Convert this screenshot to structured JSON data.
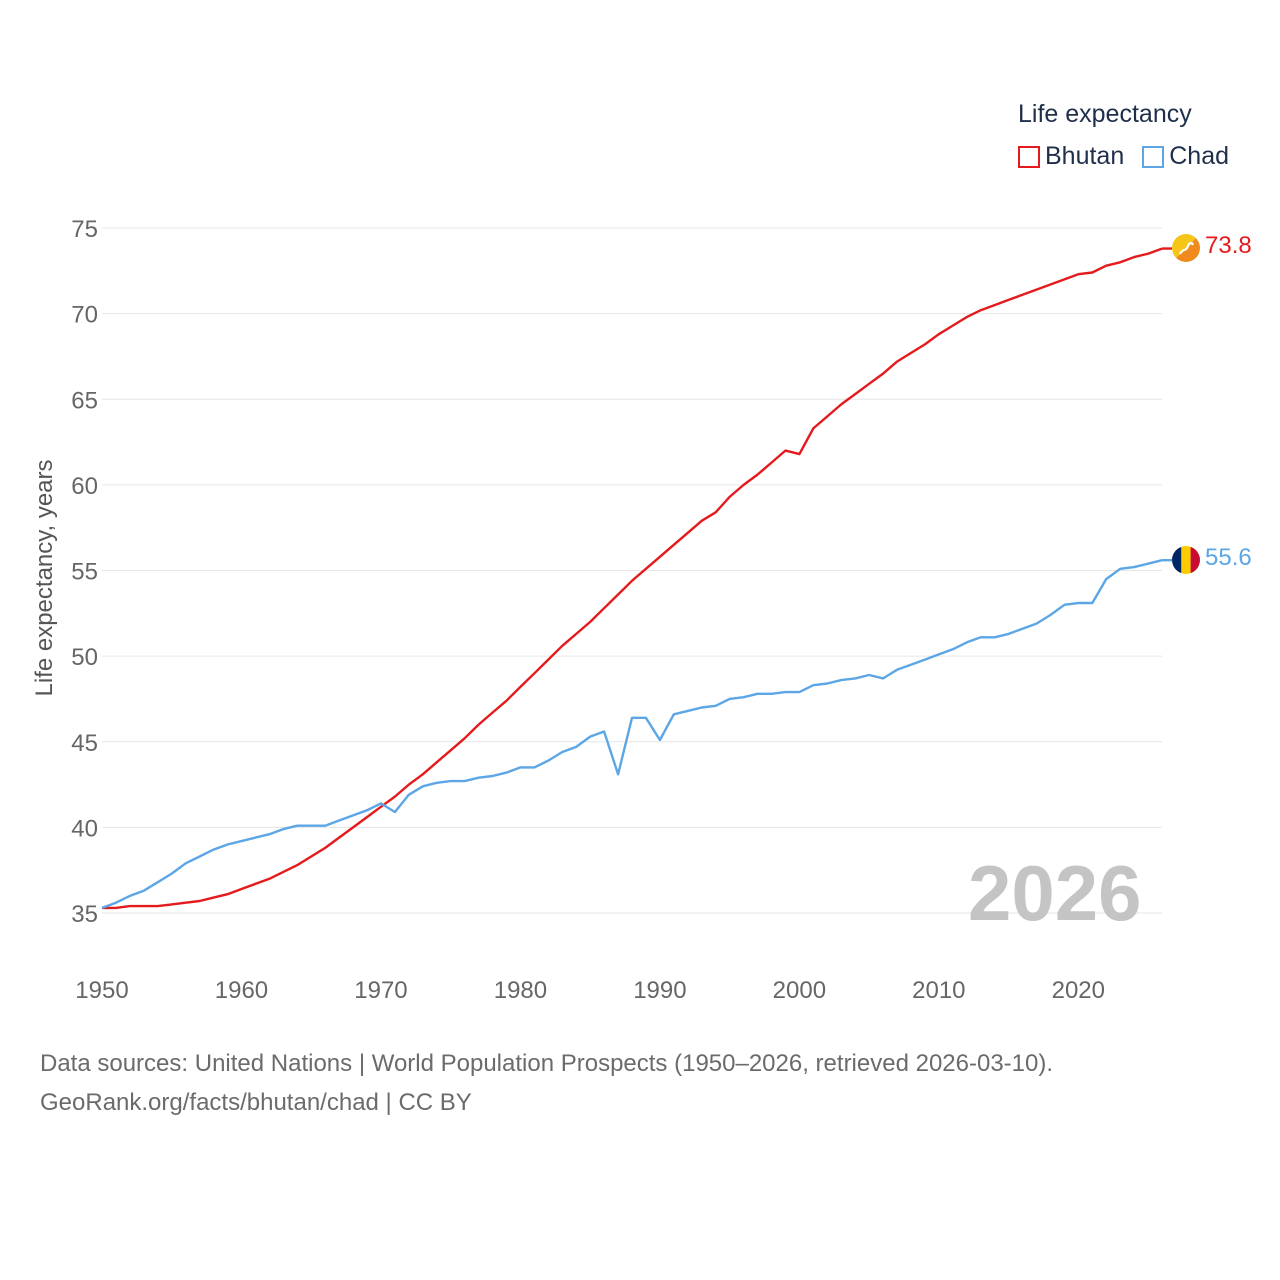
{
  "chart_data": {
    "type": "line",
    "title": "",
    "xlabel": "",
    "ylabel": "Life expectancy, years",
    "xlim": [
      1950,
      2026
    ],
    "ylim": [
      33,
      77
    ],
    "yticks": [
      35,
      40,
      45,
      50,
      55,
      60,
      65,
      70,
      75
    ],
    "xticks": [
      1950,
      1960,
      1970,
      1980,
      1990,
      2000,
      2010,
      2020
    ],
    "grid": true,
    "legend": {
      "title": "Life expectancy",
      "placement": "top-right"
    },
    "year_label": "2026",
    "series": [
      {
        "name": "Bhutan",
        "color": "#e41a1c",
        "end_label": "73.8",
        "points": [
          [
            1950,
            35.3
          ],
          [
            1951,
            35.3
          ],
          [
            1952,
            35.4
          ],
          [
            1953,
            35.4
          ],
          [
            1954,
            35.4
          ],
          [
            1955,
            35.5
          ],
          [
            1956,
            35.6
          ],
          [
            1957,
            35.7
          ],
          [
            1958,
            35.9
          ],
          [
            1959,
            36.1
          ],
          [
            1960,
            36.4
          ],
          [
            1961,
            36.7
          ],
          [
            1962,
            37.0
          ],
          [
            1963,
            37.4
          ],
          [
            1964,
            37.8
          ],
          [
            1965,
            38.3
          ],
          [
            1966,
            38.8
          ],
          [
            1967,
            39.4
          ],
          [
            1968,
            40.0
          ],
          [
            1969,
            40.6
          ],
          [
            1970,
            41.2
          ],
          [
            1971,
            41.8
          ],
          [
            1972,
            42.5
          ],
          [
            1973,
            43.1
          ],
          [
            1974,
            43.8
          ],
          [
            1975,
            44.5
          ],
          [
            1976,
            45.2
          ],
          [
            1977,
            46.0
          ],
          [
            1978,
            46.7
          ],
          [
            1979,
            47.4
          ],
          [
            1980,
            48.2
          ],
          [
            1981,
            49.0
          ],
          [
            1982,
            49.8
          ],
          [
            1983,
            50.6
          ],
          [
            1984,
            51.3
          ],
          [
            1985,
            52.0
          ],
          [
            1986,
            52.8
          ],
          [
            1987,
            53.6
          ],
          [
            1988,
            54.4
          ],
          [
            1989,
            55.1
          ],
          [
            1990,
            55.8
          ],
          [
            1991,
            56.5
          ],
          [
            1992,
            57.2
          ],
          [
            1993,
            57.9
          ],
          [
            1994,
            58.4
          ],
          [
            1995,
            59.3
          ],
          [
            1996,
            60.0
          ],
          [
            1997,
            60.6
          ],
          [
            1998,
            61.3
          ],
          [
            1999,
            62.0
          ],
          [
            2000,
            61.8
          ],
          [
            2001,
            63.3
          ],
          [
            2002,
            64.0
          ],
          [
            2003,
            64.7
          ],
          [
            2004,
            65.3
          ],
          [
            2005,
            65.9
          ],
          [
            2006,
            66.5
          ],
          [
            2007,
            67.2
          ],
          [
            2008,
            67.7
          ],
          [
            2009,
            68.2
          ],
          [
            2010,
            68.8
          ],
          [
            2011,
            69.3
          ],
          [
            2012,
            69.8
          ],
          [
            2013,
            70.2
          ],
          [
            2014,
            70.5
          ],
          [
            2015,
            70.8
          ],
          [
            2016,
            71.1
          ],
          [
            2017,
            71.4
          ],
          [
            2018,
            71.7
          ],
          [
            2019,
            72.0
          ],
          [
            2020,
            72.3
          ],
          [
            2021,
            72.4
          ],
          [
            2022,
            72.8
          ],
          [
            2023,
            73.0
          ],
          [
            2024,
            73.3
          ],
          [
            2025,
            73.5
          ],
          [
            2026,
            73.8
          ]
        ]
      },
      {
        "name": "Chad",
        "color": "#5ca6e6",
        "end_label": "55.6",
        "points": [
          [
            1950,
            35.3
          ],
          [
            1951,
            35.6
          ],
          [
            1952,
            36.0
          ],
          [
            1953,
            36.3
          ],
          [
            1954,
            36.8
          ],
          [
            1955,
            37.3
          ],
          [
            1956,
            37.9
          ],
          [
            1957,
            38.3
          ],
          [
            1958,
            38.7
          ],
          [
            1959,
            39.0
          ],
          [
            1960,
            39.2
          ],
          [
            1961,
            39.4
          ],
          [
            1962,
            39.6
          ],
          [
            1963,
            39.9
          ],
          [
            1964,
            40.1
          ],
          [
            1965,
            40.1
          ],
          [
            1966,
            40.1
          ],
          [
            1967,
            40.4
          ],
          [
            1968,
            40.7
          ],
          [
            1969,
            41.0
          ],
          [
            1970,
            41.4
          ],
          [
            1971,
            40.9
          ],
          [
            1972,
            41.9
          ],
          [
            1973,
            42.4
          ],
          [
            1974,
            42.6
          ],
          [
            1975,
            42.7
          ],
          [
            1976,
            42.7
          ],
          [
            1977,
            42.9
          ],
          [
            1978,
            43.0
          ],
          [
            1979,
            43.2
          ],
          [
            1980,
            43.5
          ],
          [
            1981,
            43.5
          ],
          [
            1982,
            43.9
          ],
          [
            1983,
            44.4
          ],
          [
            1984,
            44.7
          ],
          [
            1985,
            45.3
          ],
          [
            1986,
            45.6
          ],
          [
            1987,
            43.1
          ],
          [
            1988,
            46.4
          ],
          [
            1989,
            46.4
          ],
          [
            1990,
            45.1
          ],
          [
            1991,
            46.6
          ],
          [
            1992,
            46.8
          ],
          [
            1993,
            47.0
          ],
          [
            1994,
            47.1
          ],
          [
            1995,
            47.5
          ],
          [
            1996,
            47.6
          ],
          [
            1997,
            47.8
          ],
          [
            1998,
            47.8
          ],
          [
            1999,
            47.9
          ],
          [
            2000,
            47.9
          ],
          [
            2001,
            48.3
          ],
          [
            2002,
            48.4
          ],
          [
            2003,
            48.6
          ],
          [
            2004,
            48.7
          ],
          [
            2005,
            48.9
          ],
          [
            2006,
            48.7
          ],
          [
            2007,
            49.2
          ],
          [
            2008,
            49.5
          ],
          [
            2009,
            49.8
          ],
          [
            2010,
            50.1
          ],
          [
            2011,
            50.4
          ],
          [
            2012,
            50.8
          ],
          [
            2013,
            51.1
          ],
          [
            2014,
            51.1
          ],
          [
            2015,
            51.3
          ],
          [
            2016,
            51.6
          ],
          [
            2017,
            51.9
          ],
          [
            2018,
            52.4
          ],
          [
            2019,
            53.0
          ],
          [
            2020,
            53.1
          ],
          [
            2021,
            53.1
          ],
          [
            2022,
            54.5
          ],
          [
            2023,
            55.1
          ],
          [
            2024,
            55.2
          ],
          [
            2025,
            55.4
          ],
          [
            2026,
            55.6
          ]
        ]
      }
    ]
  },
  "source": {
    "line1": "Data sources: United Nations | World Population Prospects (1950–2026, retrieved 2026-03-10).",
    "line2": "GeoRank.org/facts/bhutan/chad | CC BY"
  }
}
